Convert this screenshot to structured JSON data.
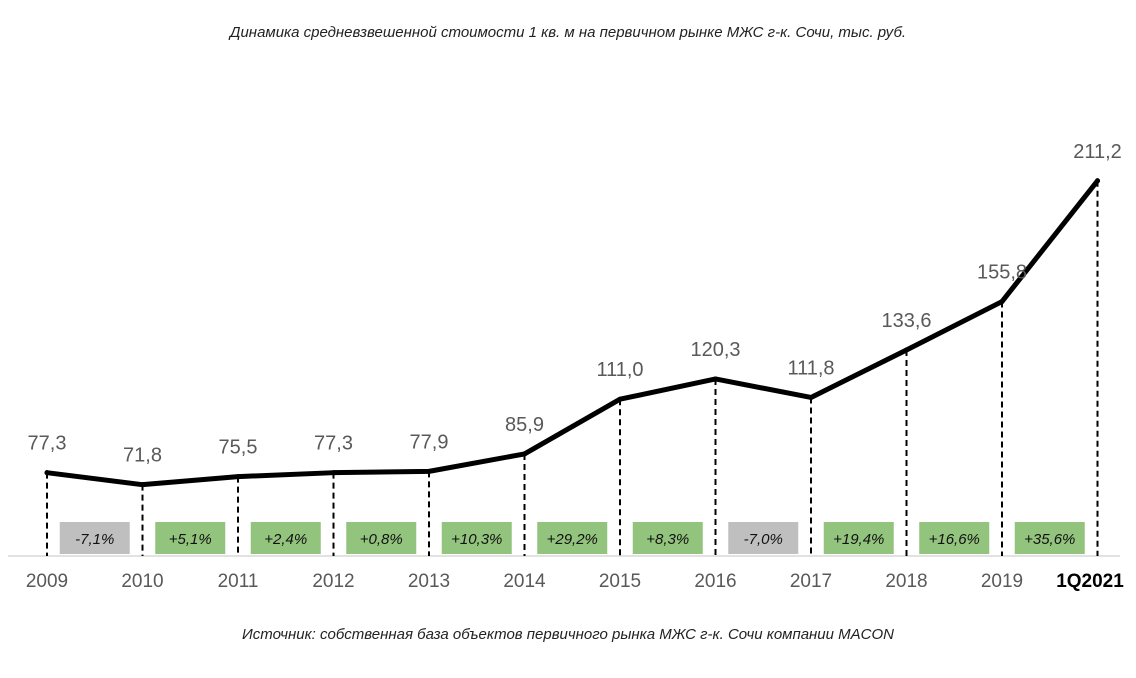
{
  "title": "Динамика средневзвешенной стоимости 1 кв. м на первичном рынке МЖС г-к. Сочи, тыс. руб.",
  "source": "Источник: собственная база объектов первичного рынка МЖС г-к. Сочи компании MACON",
  "chart_data": {
    "type": "line",
    "categories": [
      "2009",
      "2010",
      "2011",
      "2012",
      "2013",
      "2014",
      "2015",
      "2016",
      "2017",
      "2018",
      "2019",
      "1Q2021"
    ],
    "values": [
      77.3,
      71.8,
      75.5,
      77.3,
      77.9,
      85.9,
      111.0,
      120.3,
      111.8,
      133.6,
      155.8,
      211.2
    ],
    "value_labels": [
      "77,3",
      "71,8",
      "75,5",
      "77,3",
      "77,9",
      "85,9",
      "111,0",
      "120,3",
      "111,8",
      "133,6",
      "155,8",
      "211,2"
    ],
    "changes": [
      "-7,1%",
      "+5,1%",
      "+2,4%",
      "+0,8%",
      "+10,3%",
      "+29,2%",
      "+8,3%",
      "-7,0%",
      "+19,4%",
      "+16,6%",
      "+35,6%"
    ],
    "change_colors": {
      "positive": "#93c47d",
      "negative": "#bfbfbf"
    },
    "line_color": "#000000",
    "grid": false,
    "legend": "none"
  }
}
